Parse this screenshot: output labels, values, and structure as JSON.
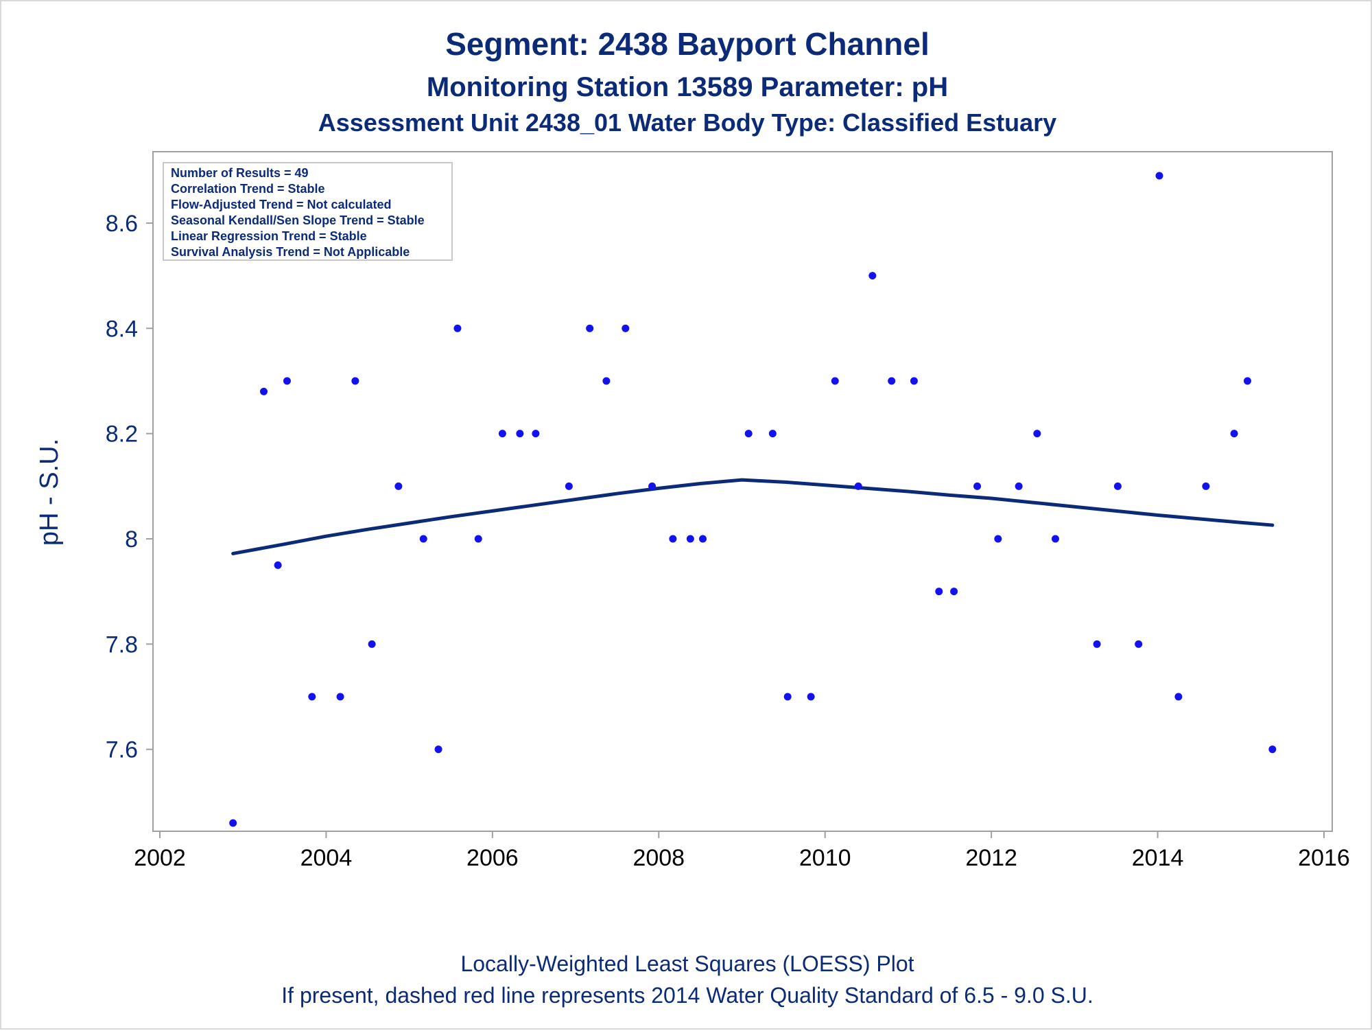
{
  "chart_data": {
    "type": "scatter",
    "title": "Segment: 2438  Bayport Channel",
    "subtitle": "Monitoring Station 13589 Parameter: pH",
    "subtitle2": "Assessment Unit 2438_01   Water Body Type: Classified Estuary",
    "xlabel": "",
    "ylabel": "pH - S.U.",
    "xlim": [
      2002,
      2016
    ],
    "ylim": [
      7.46,
      8.72
    ],
    "xticks": [
      "2002",
      "2004",
      "2006",
      "2008",
      "2010",
      "2012",
      "2014",
      "2016"
    ],
    "yticks": [
      "7.6",
      "7.8",
      "8",
      "8.2",
      "8.4",
      "8.6"
    ],
    "grid": false,
    "annotations": [
      "Number of Results = 49",
      "Correlation Trend = Stable",
      "Flow-Adjusted Trend = Not calculated",
      "Seasonal Kendall/Sen Slope Trend = Stable",
      "Linear Regression Trend = Stable",
      "Survival Analysis Trend = Not Applicable"
    ],
    "footnotes": [
      "Locally-Weighted Least Squares (LOESS) Plot",
      "If present, dashed red line represents 2014 Water Quality Standard of 6.5 - 9.0 S.U."
    ],
    "colors": {
      "points": "#1212f0",
      "trend": "#0b2b78",
      "text": "#0b2b78",
      "axis": "#a0a0a0"
    },
    "series": [
      {
        "kind": "points",
        "x": [
          2002.88,
          2003.25,
          2003.42,
          2003.53,
          2003.83,
          2004.17,
          2004.35,
          2004.55,
          2004.87,
          2005.17,
          2005.35,
          2005.58,
          2005.83,
          2006.12,
          2006.33,
          2006.52,
          2006.92,
          2007.17,
          2007.37,
          2007.6,
          2007.92,
          2008.17,
          2008.38,
          2008.53,
          2009.08,
          2009.37,
          2009.55,
          2009.83,
          2010.12,
          2010.4,
          2010.57,
          2010.8,
          2011.07,
          2011.37,
          2011.55,
          2011.83,
          2012.08,
          2012.33,
          2012.55,
          2012.77,
          2013.27,
          2013.52,
          2013.77,
          2014.02,
          2014.25,
          2014.58,
          2014.92,
          2015.08,
          2015.38
        ],
        "y": [
          7.46,
          8.28,
          7.95,
          8.3,
          7.7,
          7.7,
          8.3,
          7.8,
          8.1,
          8.0,
          7.6,
          8.4,
          8.0,
          8.2,
          8.2,
          8.2,
          8.1,
          8.4,
          8.3,
          8.4,
          8.1,
          8.0,
          8.0,
          8.0,
          8.2,
          8.2,
          7.7,
          7.7,
          8.3,
          8.1,
          8.5,
          8.3,
          8.3,
          7.9,
          7.9,
          8.1,
          8.0,
          8.1,
          8.2,
          8.0,
          7.8,
          8.1,
          7.8,
          8.69,
          7.7,
          8.1,
          8.2,
          8.3,
          7.6
        ]
      },
      {
        "kind": "loess",
        "x": [
          2002.88,
          2003.5,
          2004.0,
          2004.5,
          2005.0,
          2005.5,
          2006.0,
          2006.5,
          2007.0,
          2007.5,
          2008.0,
          2008.5,
          2009.0,
          2009.5,
          2010.0,
          2010.5,
          2011.0,
          2011.5,
          2012.0,
          2012.5,
          2013.0,
          2013.5,
          2014.0,
          2014.5,
          2015.0,
          2015.38
        ],
        "y": [
          7.972,
          7.99,
          8.005,
          8.018,
          8.03,
          8.042,
          8.053,
          8.064,
          8.075,
          8.086,
          8.096,
          8.105,
          8.112,
          8.108,
          8.102,
          8.096,
          8.09,
          8.083,
          8.077,
          8.069,
          8.061,
          8.053,
          8.045,
          8.038,
          8.031,
          8.026
        ]
      }
    ]
  }
}
